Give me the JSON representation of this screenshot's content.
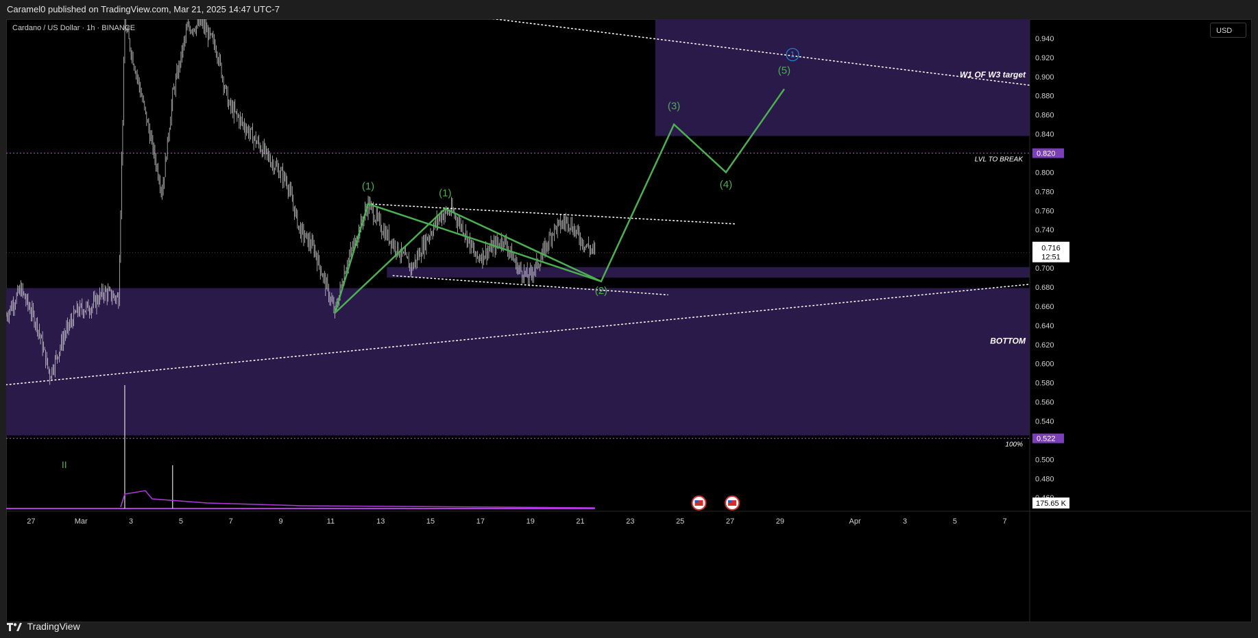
{
  "header": {
    "title": "Caramel0 published on TradingView.com, Mar 21, 2025 14:47 UTC-7"
  },
  "symbol": {
    "title": "Cardano / US Dollar · 1h · BINANCE"
  },
  "currency_button": "USD",
  "footer": {
    "brand": "TradingView"
  },
  "colors": {
    "background": "#000000",
    "zone": "#2a1a4a",
    "wave": "#4caf50",
    "candles": "#e0e0e0",
    "volume_ma": "#b03adf",
    "level_dotted": "#a040c0",
    "tag_purple": "#7b3fb8",
    "wave_circle": "#1e88e5"
  },
  "chart_data": {
    "type": "candlestick",
    "ylim": [
      0.448,
      0.96
    ],
    "x_domain": [
      "2025-02-26",
      "2025-04-08"
    ],
    "y_ticks": [
      "0.940",
      "0.920",
      "0.900",
      "0.880",
      "0.860",
      "0.840",
      "0.800",
      "0.780",
      "0.760",
      "0.740",
      "0.700",
      "0.680",
      "0.660",
      "0.640",
      "0.620",
      "0.600",
      "0.580",
      "0.560",
      "0.540",
      "0.500",
      "0.480",
      "0.460"
    ],
    "x_ticks": [
      {
        "date": "2025-02-27",
        "label": "27"
      },
      {
        "date": "2025-03-01",
        "label": "Mar"
      },
      {
        "date": "2025-03-03",
        "label": "3"
      },
      {
        "date": "2025-03-05",
        "label": "5"
      },
      {
        "date": "2025-03-07",
        "label": "7"
      },
      {
        "date": "2025-03-09",
        "label": "9"
      },
      {
        "date": "2025-03-11",
        "label": "11"
      },
      {
        "date": "2025-03-13",
        "label": "13"
      },
      {
        "date": "2025-03-15",
        "label": "15"
      },
      {
        "date": "2025-03-17",
        "label": "17"
      },
      {
        "date": "2025-03-19",
        "label": "19"
      },
      {
        "date": "2025-03-21",
        "label": "21"
      },
      {
        "date": "2025-03-23",
        "label": "23"
      },
      {
        "date": "2025-03-25",
        "label": "25"
      },
      {
        "date": "2025-03-27",
        "label": "27"
      },
      {
        "date": "2025-03-29",
        "label": "29"
      },
      {
        "date": "2025-04-01",
        "label": "Apr"
      },
      {
        "date": "2025-04-03",
        "label": "3"
      },
      {
        "date": "2025-04-05",
        "label": "5"
      },
      {
        "date": "2025-04-07",
        "label": "7"
      }
    ],
    "price_path": [
      [
        "2025-02-26 00:00",
        0.65
      ],
      [
        "2025-02-26 14:00",
        0.678
      ],
      [
        "2025-02-27 06:00",
        0.64
      ],
      [
        "2025-02-27 18:00",
        0.588
      ],
      [
        "2025-02-28 08:00",
        0.63
      ],
      [
        "2025-02-28 20:00",
        0.655
      ],
      [
        "2025-03-01 10:00",
        0.66
      ],
      [
        "2025-03-01 22:00",
        0.675
      ],
      [
        "2025-03-02 12:00",
        0.668
      ],
      [
        "2025-03-02 18:00",
        0.955
      ],
      [
        "2025-03-03 06:00",
        0.9
      ],
      [
        "2025-03-03 18:00",
        0.84
      ],
      [
        "2025-03-04 06:00",
        0.78
      ],
      [
        "2025-03-04 16:00",
        0.88
      ],
      [
        "2025-03-05 06:00",
        0.95
      ],
      [
        "2025-03-05 20:00",
        0.955
      ],
      [
        "2025-03-06 10:00",
        0.93
      ],
      [
        "2025-03-06 22:00",
        0.87
      ],
      [
        "2025-03-07 12:00",
        0.85
      ],
      [
        "2025-03-08 02:00",
        0.83
      ],
      [
        "2025-03-08 16:00",
        0.81
      ],
      [
        "2025-03-09 06:00",
        0.79
      ],
      [
        "2025-03-09 18:00",
        0.74
      ],
      [
        "2025-03-10 08:00",
        0.72
      ],
      [
        "2025-03-10 20:00",
        0.68
      ],
      [
        "2025-03-11 04:00",
        0.653
      ],
      [
        "2025-03-11 14:00",
        0.7
      ],
      [
        "2025-03-12 00:00",
        0.73
      ],
      [
        "2025-03-12 12:00",
        0.767
      ],
      [
        "2025-03-13 02:00",
        0.74
      ],
      [
        "2025-03-13 16:00",
        0.72
      ],
      [
        "2025-03-14 06:00",
        0.7
      ],
      [
        "2025-03-14 20:00",
        0.73
      ],
      [
        "2025-03-15 10:00",
        0.755
      ],
      [
        "2025-03-15 20:00",
        0.76
      ],
      [
        "2025-03-16 08:00",
        0.74
      ],
      [
        "2025-03-16 20:00",
        0.71
      ],
      [
        "2025-03-17 10:00",
        0.72
      ],
      [
        "2025-03-17 22:00",
        0.73
      ],
      [
        "2025-03-18 12:00",
        0.7
      ],
      [
        "2025-03-18 22:00",
        0.69
      ],
      [
        "2025-03-19 10:00",
        0.71
      ],
      [
        "2025-03-19 22:00",
        0.74
      ],
      [
        "2025-03-20 12:00",
        0.75
      ],
      [
        "2025-03-20 18:00",
        0.74
      ],
      [
        "2025-03-21 04:00",
        0.725
      ],
      [
        "2025-03-21 14:00",
        0.716
      ]
    ],
    "last_candle": "2025-03-21 14:00",
    "zones": [
      {
        "from": "2025-03-24",
        "to": "2025-04-08",
        "y1": 0.838,
        "y2": 0.962
      },
      {
        "from": "2025-03-13 06:00",
        "to": "2025-04-08",
        "y1": 0.69,
        "y2": 0.701
      },
      {
        "from": "2025-02-26",
        "to": "2025-04-08",
        "y1": 0.525,
        "y2": 0.679
      }
    ],
    "horizontal_levels": [
      {
        "y": 0.82,
        "tag": "0.820",
        "label": "LVL TO BREAK"
      },
      {
        "y": 0.522,
        "tag": "0.522",
        "label": "100%"
      }
    ],
    "current_price": {
      "y": 0.716,
      "price": "0.716",
      "countdown": "12:51"
    },
    "volume_tag": "175.65 K",
    "trendlines": [
      {
        "from": [
          "2025-03-13 00:00",
          0.975
        ],
        "to": [
          "2025-04-08",
          0.891
        ]
      },
      {
        "from": [
          "2025-02-26",
          0.578
        ],
        "to": [
          "2025-04-08",
          0.683
        ]
      },
      {
        "from": [
          "2025-03-12 12:00",
          0.767
        ],
        "to": [
          "2025-03-27 06:00",
          0.746
        ]
      },
      {
        "from": [
          "2025-03-13 12:00",
          0.692
        ],
        "to": [
          "2025-03-24 12:00",
          0.672
        ]
      }
    ],
    "wave_path": [
      [
        "2025-03-11 04:00",
        0.653
      ],
      [
        "2025-03-12 12:00",
        0.767
      ],
      [
        "2025-03-21 20:00",
        0.686
      ],
      [
        "2025-03-24 18:00",
        0.85
      ],
      [
        "2025-03-26 20:00",
        0.8
      ],
      [
        "2025-03-29 04:00",
        0.887
      ]
    ],
    "wave_path_2": [
      [
        "2025-03-11 04:00",
        0.653
      ],
      [
        "2025-03-15 14:00",
        0.762
      ],
      [
        "2025-03-21 20:00",
        0.686
      ]
    ],
    "wave_labels": [
      {
        "date": "2025-03-12 12:00",
        "y": 0.782,
        "text": "(1)"
      },
      {
        "date": "2025-03-15 14:00",
        "y": 0.775,
        "text": "(1)"
      },
      {
        "date": "2025-03-21 20:00",
        "y": 0.673,
        "text": "(2)"
      },
      {
        "date": "2025-03-24 18:00",
        "y": 0.866,
        "text": "(3)"
      },
      {
        "date": "2025-03-26 20:00",
        "y": 0.784,
        "text": "(4)"
      },
      {
        "date": "2025-03-29 04:00",
        "y": 0.903,
        "text": "(5)"
      }
    ],
    "circle_label": {
      "date": "2025-03-29 12:00",
      "y": 0.923,
      "text": "1"
    },
    "annotations": [
      {
        "text": "W1 OF W3 target",
        "y": 0.899
      },
      {
        "text": "BOTTOM",
        "y": 0.621
      }
    ],
    "volume_spikes": [
      {
        "date": "2025-03-02 18:00",
        "fraction": 1.0
      },
      {
        "date": "2025-03-04 16:00",
        "fraction": 0.35
      }
    ],
    "indicator_mark": {
      "date": "2025-02-28",
      "text": "II"
    }
  }
}
